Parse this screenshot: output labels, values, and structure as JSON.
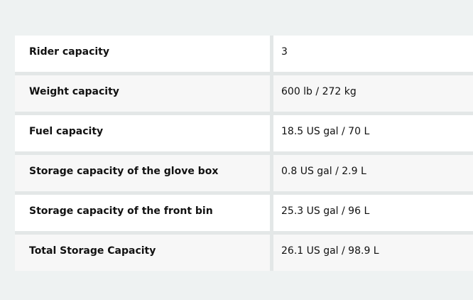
{
  "specs": [
    {
      "label": "Rider capacity",
      "value": "3"
    },
    {
      "label": "Weight capacity",
      "value": "600 lb / 272 kg"
    },
    {
      "label": "Fuel capacity",
      "value": "18.5 US gal / 70 L"
    },
    {
      "label": "Storage capacity of the glove box",
      "value": "0.8 US gal / 2.9 L"
    },
    {
      "label": "Storage capacity of the front bin",
      "value": "25.3 US gal / 96 L"
    },
    {
      "label": "Total Storage Capacity",
      "value": "26.1 US gal / 98.9 L"
    }
  ]
}
